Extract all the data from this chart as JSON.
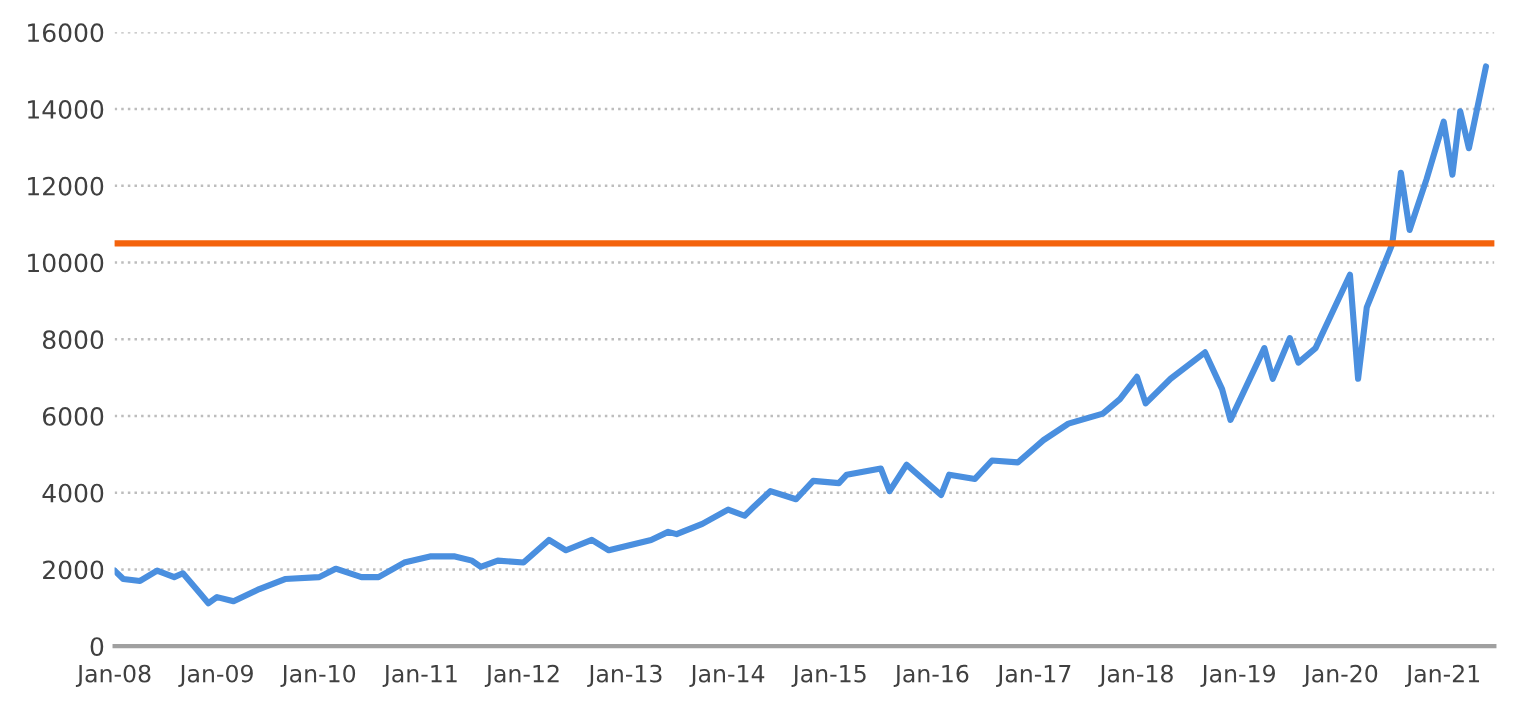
{
  "chart_data": {
    "type": "line",
    "x": [
      "2008-01",
      "2008-02",
      "2008-04",
      "2008-06",
      "2008-08",
      "2008-09",
      "2008-11",
      "2008-12",
      "2009-01",
      "2009-03",
      "2009-06",
      "2009-09",
      "2010-01",
      "2010-03",
      "2010-06",
      "2010-08",
      "2010-11",
      "2011-02",
      "2011-05",
      "2011-07",
      "2011-08",
      "2011-10",
      "2012-01",
      "2012-04",
      "2012-06",
      "2012-09",
      "2012-11",
      "2013-04",
      "2013-06",
      "2013-07",
      "2013-10",
      "2014-01",
      "2014-03",
      "2014-04",
      "2014-06",
      "2014-09",
      "2014-11",
      "2015-02",
      "2015-03",
      "2015-07",
      "2015-08",
      "2015-10",
      "2016-02",
      "2016-03",
      "2016-06",
      "2016-08",
      "2016-11",
      "2017-02",
      "2017-05",
      "2017-09",
      "2017-11",
      "2018-01",
      "2018-02",
      "2018-05",
      "2018-09",
      "2018-11",
      "2018-12",
      "2019-04",
      "2019-05",
      "2019-07",
      "2019-08",
      "2019-10",
      "2020-02",
      "2020-03",
      "2020-04",
      "2020-07",
      "2020-08",
      "2020-09",
      "2020-11",
      "2021-01",
      "2021-02",
      "2021-03",
      "2021-04",
      "2021-06"
    ],
    "series": [
      {
        "color": "#4a8fdf",
        "values": [
          1970,
          1750,
          1700,
          1970,
          1800,
          1900,
          1380,
          1120,
          1280,
          1170,
          1490,
          1750,
          1800,
          2020,
          1800,
          1800,
          2180,
          2340,
          2340,
          2230,
          2070,
          2230,
          2180,
          2770,
          2500,
          2770,
          2500,
          2770,
          2980,
          2920,
          3190,
          3560,
          3400,
          3620,
          4040,
          3830,
          4310,
          4250,
          4470,
          4630,
          4040,
          4730,
          3940,
          4470,
          4360,
          4840,
          4790,
          5370,
          5800,
          6060,
          6440,
          7020,
          6330,
          6970,
          7660,
          6700,
          5900,
          7770,
          6970,
          8030,
          7390,
          7770,
          9680,
          6970,
          8830,
          10480,
          12340,
          10850,
          12180,
          13670,
          12290,
          13940,
          12980,
          15110
        ]
      }
    ],
    "ref_lines": [
      {
        "axis": "y",
        "value": 10500,
        "color": "#f4630c"
      }
    ],
    "xlim": [
      "2008-01",
      "2021-07"
    ],
    "xticks": [
      {
        "value": "2008-01",
        "label": "Jan-08"
      },
      {
        "value": "2009-01",
        "label": "Jan-09"
      },
      {
        "value": "2010-01",
        "label": "Jan-10"
      },
      {
        "value": "2011-01",
        "label": "Jan-11"
      },
      {
        "value": "2012-01",
        "label": "Jan-12"
      },
      {
        "value": "2013-01",
        "label": "Jan-13"
      },
      {
        "value": "2014-01",
        "label": "Jan-14"
      },
      {
        "value": "2015-01",
        "label": "Jan-15"
      },
      {
        "value": "2016-01",
        "label": "Jan-16"
      },
      {
        "value": "2017-01",
        "label": "Jan-17"
      },
      {
        "value": "2018-01",
        "label": "Jan-18"
      },
      {
        "value": "2019-01",
        "label": "Jan-19"
      },
      {
        "value": "2020-01",
        "label": "Jan-20"
      },
      {
        "value": "2021-01",
        "label": "Jan-21"
      }
    ],
    "ylim": [
      0,
      16000
    ],
    "yticks": [
      0,
      2000,
      4000,
      6000,
      8000,
      10000,
      12000,
      14000,
      16000
    ],
    "grid": "y",
    "legend": false,
    "line_style": "solid",
    "marker": "none"
  }
}
